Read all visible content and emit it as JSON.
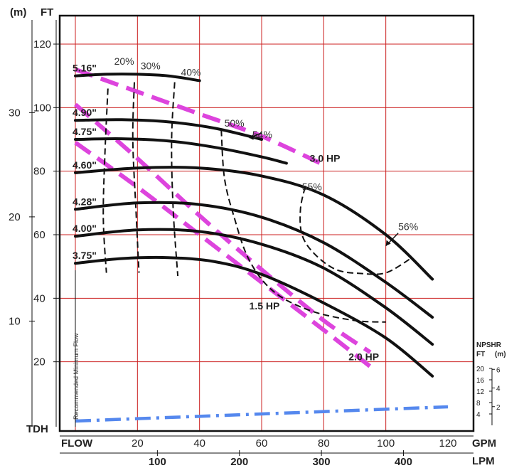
{
  "chart_data": {
    "type": "line",
    "x_axis": {
      "label": "GPM",
      "corner_label": "FLOW",
      "ticks": [
        20,
        40,
        60,
        80,
        100,
        120
      ],
      "range": [
        0,
        120
      ]
    },
    "x2_axis": {
      "label": "LPM",
      "ticks": [
        100,
        200,
        300,
        400
      ],
      "range": [
        0,
        454
      ]
    },
    "y_axis": {
      "label": "FT",
      "corner_label": "TDH",
      "ticks": [
        20,
        40,
        60,
        80,
        100,
        120
      ],
      "range": [
        0,
        130
      ]
    },
    "y2_axis": {
      "label": "(m)",
      "ticks": [
        10,
        20,
        30
      ],
      "range": [
        0,
        39.6
      ]
    },
    "npshr_axis": {
      "title": "NPSHR",
      "ft_label": "FT",
      "m_label": "(m)",
      "ft_ticks": [
        4,
        8,
        12,
        16,
        20
      ],
      "m_ticks": [
        2,
        4,
        6
      ],
      "ft_range": [
        0,
        20
      ]
    },
    "grid": true,
    "min_flow_label": "Recommended Minimum Flow",
    "impeller_curves": [
      {
        "name": "5.16\"",
        "x": [
          0,
          10,
          20,
          30,
          40
        ],
        "y": [
          110,
          110.5,
          110.5,
          110,
          108.5
        ]
      },
      {
        "name": "4.90\"",
        "x": [
          0,
          15,
          30,
          45,
          60
        ],
        "y": [
          96,
          96.2,
          95.5,
          93.5,
          90
        ]
      },
      {
        "name": "4.75\"",
        "x": [
          0,
          15,
          30,
          45,
          60,
          68
        ],
        "y": [
          90,
          90.2,
          89.5,
          87.5,
          84.5,
          82.5
        ]
      },
      {
        "name": "4.60\"",
        "x": [
          0,
          20,
          40,
          60,
          80,
          100,
          115
        ],
        "y": [
          79.5,
          81,
          81,
          78.5,
          72.5,
          60,
          46
        ]
      },
      {
        "name": "4.28\"",
        "x": [
          0,
          20,
          40,
          60,
          80,
          100,
          115
        ],
        "y": [
          68,
          70,
          69.5,
          65.5,
          57.5,
          45,
          34
        ]
      },
      {
        "name": "4.00\"",
        "x": [
          0,
          20,
          40,
          60,
          80,
          100,
          115
        ],
        "y": [
          59.5,
          61.5,
          61,
          57,
          49.5,
          37,
          25.5
        ]
      },
      {
        "name": "3.75\"",
        "x": [
          0,
          15,
          30,
          45,
          60,
          80,
          100,
          115
        ],
        "y": [
          51,
          52.5,
          52.8,
          51.5,
          47.5,
          38.5,
          27.5,
          15.5
        ]
      }
    ],
    "efficiency_curves": [
      {
        "name": "20%",
        "x": [
          10.5,
          9.5,
          9,
          10
        ],
        "y": [
          106,
          85,
          65,
          48
        ]
      },
      {
        "name": "30%",
        "x": [
          19,
          18.5,
          19.5,
          20.5
        ],
        "y": [
          108,
          90,
          68,
          48
        ]
      },
      {
        "name": "40%",
        "x": [
          32,
          31,
          31.5,
          33
        ],
        "y": [
          108,
          90,
          68,
          47
        ]
      },
      {
        "name": "50%",
        "x": [
          47,
          48,
          51,
          56,
          64,
          76,
          90,
          100
        ],
        "y": [
          93,
          78,
          66,
          52,
          42,
          36,
          33,
          32.5
        ]
      },
      {
        "name": "55%",
        "x": [
          74,
          72.5,
          73,
          77,
          84,
          92,
          100,
          108
        ],
        "y": [
          75,
          68,
          60,
          54,
          49,
          47.8,
          48,
          52.5
        ]
      },
      {
        "name": "54%"
      },
      {
        "name": "56%"
      }
    ],
    "horsepower_curves": [
      {
        "name": "1.5 HP",
        "x": [
          0,
          20,
          40,
          60,
          80,
          95
        ],
        "y": [
          101,
          84,
          66,
          49,
          33,
          23
        ]
      },
      {
        "name": "2.0 HP",
        "x": [
          0,
          20,
          40,
          60,
          80,
          95
        ],
        "y": [
          89,
          75,
          60,
          45,
          30,
          18.5
        ]
      },
      {
        "name": "3.0 HP",
        "x": [
          0,
          20,
          40,
          60,
          80
        ],
        "y": [
          112,
          105,
          98,
          91,
          82
        ]
      }
    ],
    "npshr_curve": {
      "x": [
        0,
        60,
        120
      ],
      "y": [
        1.5,
        4,
        6.5
      ]
    }
  },
  "colors": {
    "grid": "#cc2020",
    "curve": "#111111",
    "hp_curve": "#dd44dd",
    "npshr_curve": "#5588ee",
    "axis": "#111111"
  }
}
